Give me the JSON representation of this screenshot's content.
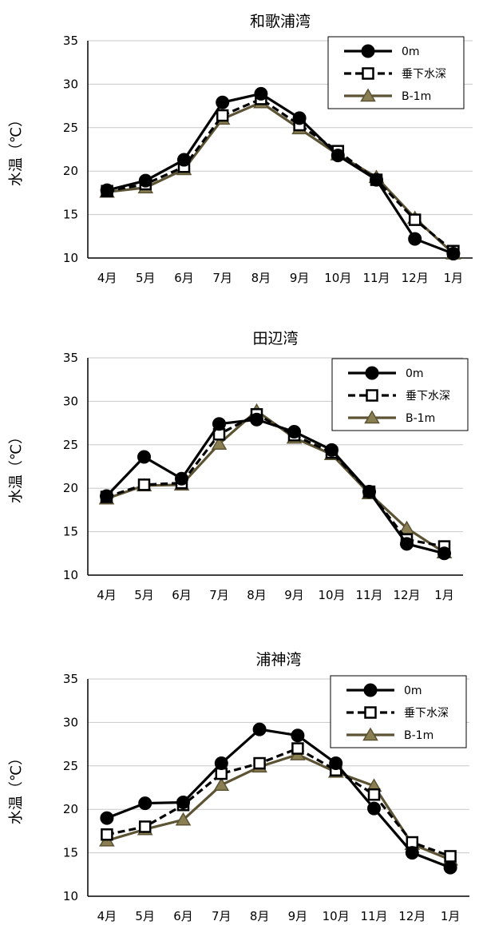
{
  "chart_data": [
    {
      "type": "line",
      "title": "和歌浦湾",
      "ylabel": "水温（℃）",
      "xlabel": "",
      "categories": [
        "4月",
        "5月",
        "6月",
        "7月",
        "8月",
        "9月",
        "10月",
        "11月",
        "12月",
        "1月"
      ],
      "ylim": [
        10,
        35
      ],
      "yticks": [
        10,
        15,
        20,
        25,
        30,
        35
      ],
      "grid": true,
      "legend_position": "top-right",
      "series": [
        {
          "name": "0m",
          "marker": "circle",
          "line": "solid",
          "color": "#000000",
          "values": [
            17.8,
            18.9,
            21.3,
            27.9,
            28.9,
            26.1,
            21.8,
            19.0,
            12.2,
            10.5
          ]
        },
        {
          "name": "垂下水深",
          "marker": "square",
          "line": "dashed",
          "color": "#000000",
          "values": [
            17.7,
            18.5,
            20.5,
            26.4,
            28.3,
            25.3,
            22.3,
            19.0,
            14.4,
            10.8
          ]
        },
        {
          "name": "B-1m",
          "marker": "triangle",
          "line": "solid",
          "color": "#5c5334",
          "values": [
            17.6,
            18.1,
            20.2,
            26.0,
            27.9,
            24.9,
            21.9,
            19.3,
            14.6,
            10.5
          ]
        }
      ]
    },
    {
      "type": "line",
      "title": "田辺湾",
      "ylabel": "水温（℃）",
      "xlabel": "",
      "categories": [
        "4月",
        "5月",
        "6月",
        "7月",
        "8月",
        "9月",
        "10月",
        "11月",
        "12月",
        "1月"
      ],
      "ylim": [
        10,
        35
      ],
      "yticks": [
        10,
        15,
        20,
        25,
        30,
        35
      ],
      "grid": true,
      "legend_position": "top-right",
      "series": [
        {
          "name": "0m",
          "marker": "circle",
          "line": "solid",
          "color": "#000000",
          "values": [
            19.1,
            23.6,
            21.1,
            27.4,
            27.9,
            26.5,
            24.4,
            19.6,
            13.6,
            12.5
          ]
        },
        {
          "name": "垂下水深",
          "marker": "square",
          "line": "dashed",
          "color": "#000000",
          "values": [
            19.0,
            20.4,
            20.6,
            26.2,
            28.5,
            26.1,
            24.1,
            19.6,
            14.1,
            13.3
          ]
        },
        {
          "name": "B-1m",
          "marker": "triangle",
          "line": "solid",
          "color": "#5c5334",
          "values": [
            18.8,
            20.3,
            20.4,
            25.1,
            28.9,
            25.8,
            23.9,
            19.4,
            15.4,
            12.6
          ]
        }
      ]
    },
    {
      "type": "line",
      "title": "浦神湾",
      "ylabel": "水温（℃）",
      "xlabel": "",
      "categories": [
        "4月",
        "5月",
        "6月",
        "7月",
        "8月",
        "9月",
        "10月",
        "11月",
        "12月",
        "1月"
      ],
      "ylim": [
        10,
        35
      ],
      "yticks": [
        10,
        15,
        20,
        25,
        30,
        35
      ],
      "grid": true,
      "legend_position": "top-right",
      "series": [
        {
          "name": "0m",
          "marker": "circle",
          "line": "solid",
          "color": "#000000",
          "values": [
            19.0,
            20.7,
            20.8,
            25.3,
            29.2,
            28.5,
            25.3,
            20.1,
            15.0,
            13.3
          ]
        },
        {
          "name": "垂下水深",
          "marker": "square",
          "line": "dashed",
          "color": "#000000",
          "values": [
            17.1,
            18.0,
            20.5,
            24.1,
            25.3,
            27.0,
            24.5,
            21.7,
            16.2,
            14.6
          ]
        },
        {
          "name": "B-1m",
          "marker": "triangle",
          "line": "solid",
          "color": "#5c5334",
          "values": [
            16.4,
            17.7,
            18.8,
            22.8,
            24.9,
            26.3,
            24.3,
            22.7,
            16.0,
            14.2
          ]
        }
      ]
    }
  ]
}
